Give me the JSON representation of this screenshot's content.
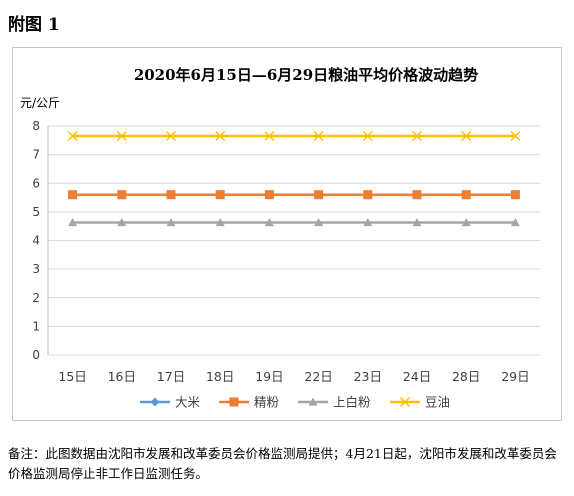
{
  "figure_label": "附图 1",
  "note": "备注：此图数据由沈阳市发展和改革委员会价格监测局提供；4月21日起，沈阳市发展和改革委员会价格监测局停止非工作日监测任务。",
  "colors": {
    "大米": "#5b9bd5",
    "精粉": "#ed7d31",
    "上白粉": "#a5a5a5",
    "豆油": "#ffc000"
  },
  "chart_data": {
    "type": "line",
    "title": "2020年6月15日—6月29日粮油平均价格波动趋势",
    "ylabel": "元/公斤",
    "xlabel": "",
    "categories": [
      "15日",
      "16日",
      "17日",
      "18日",
      "19日",
      "22日",
      "23日",
      "24日",
      "28日",
      "29日"
    ],
    "ylim": [
      0,
      8
    ],
    "yticks": [
      "0",
      "1",
      "2",
      "3",
      "4",
      "5",
      "6",
      "7",
      "8"
    ],
    "grid": true,
    "legend_position": "bottom",
    "series": [
      {
        "name": "大米",
        "marker": "diamond",
        "values": [
          null,
          null,
          null,
          null,
          null,
          null,
          null,
          null,
          null,
          null
        ]
      },
      {
        "name": "精粉",
        "marker": "square",
        "values": [
          5.6,
          5.6,
          5.6,
          5.6,
          5.6,
          5.6,
          5.6,
          5.6,
          5.6,
          5.6
        ]
      },
      {
        "name": "上白粉",
        "marker": "triangle",
        "values": [
          4.63,
          4.63,
          4.63,
          4.63,
          4.63,
          4.63,
          4.63,
          4.63,
          4.63,
          4.63
        ]
      },
      {
        "name": "豆油",
        "marker": "x",
        "values": [
          7.65,
          7.65,
          7.65,
          7.65,
          7.65,
          7.65,
          7.65,
          7.65,
          7.65,
          7.65
        ]
      }
    ]
  }
}
